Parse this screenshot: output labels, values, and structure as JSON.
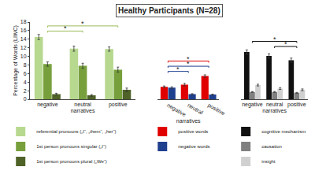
{
  "chart_data": {
    "type": "bar",
    "title": "Healthy Participants (N=28)",
    "ylabel": "Percentage of Words (LIWC)",
    "ylim": [
      0,
      18
    ],
    "yticks": [
      0,
      2,
      4,
      6,
      8,
      10,
      12,
      14,
      16,
      18
    ],
    "grid": false,
    "panels": [
      {
        "categories": [
          "negative",
          "neutral",
          "positive"
        ],
        "xlabel": "narratives",
        "series": [
          {
            "name": "referential pronouns („I“, „them“, „her“)",
            "color": "#b7d88f",
            "values": [
              14.5,
              11.8,
              11.7
            ],
            "errors": [
              0.6,
              0.6,
              0.5
            ]
          },
          {
            "name": "1st person pronouns singular („I“)",
            "color": "#77a03c",
            "values": [
              8.2,
              7.8,
              6.9
            ],
            "errors": [
              0.5,
              0.6,
              0.6
            ]
          },
          {
            "name": "1st person pronouns plural („We“)",
            "color": "#4f6228",
            "values": [
              1.2,
              0.9,
              2.2
            ],
            "errors": [
              0.2,
              0.2,
              0.4
            ]
          }
        ],
        "brackets": [
          {
            "from": "negative",
            "to": "neutral",
            "label": "*",
            "color": "#9bbb59"
          },
          {
            "from": "negative",
            "to": "positive",
            "label": "*",
            "color": "#9bbb59"
          }
        ]
      },
      {
        "categories": [
          "negative",
          "neutral",
          "positive"
        ],
        "xlabel": "narratives",
        "series": [
          {
            "name": "positive words",
            "color": "#e00000",
            "values": [
              2.9,
              3.4,
              5.4
            ],
            "errors": [
              0.2,
              0.3,
              0.3
            ]
          },
          {
            "name": "negative words",
            "color": "#1f3f8f",
            "values": [
              2.7,
              1.2,
              1.1
            ],
            "errors": [
              0.2,
              0.1,
              0.1
            ]
          }
        ],
        "brackets": [
          {
            "from": "negative",
            "to": "neutral",
            "label": "*",
            "color": "#1f3f8f"
          },
          {
            "from": "negative",
            "to": "positive",
            "label": "*",
            "color": "#1f3f8f"
          },
          {
            "from": "negative",
            "to": "positive",
            "label": "*",
            "color": "#e00000"
          }
        ]
      },
      {
        "categories": [
          "negative",
          "neutral",
          "positive"
        ],
        "xlabel": "narratives",
        "series": [
          {
            "name": "cognitive mechanism",
            "color": "#111111",
            "values": [
              11.0,
              10.1,
              9.1
            ],
            "errors": [
              0.5,
              0.5,
              0.5
            ]
          },
          {
            "name": "causation",
            "color": "#808080",
            "values": [
              1.7,
              1.7,
              1.5
            ],
            "errors": [
              0.1,
              0.1,
              0.1
            ]
          },
          {
            "name": "insight",
            "color": "#d0d0d0",
            "values": [
              3.3,
              2.5,
              2.2
            ],
            "errors": [
              0.2,
              0.2,
              0.2
            ]
          }
        ],
        "brackets": [
          {
            "from": "neutral",
            "to": "positive",
            "label": "*",
            "color": "#111111"
          },
          {
            "from": "negative",
            "to": "positive",
            "label": "*",
            "color": "#111111"
          }
        ]
      }
    ]
  }
}
